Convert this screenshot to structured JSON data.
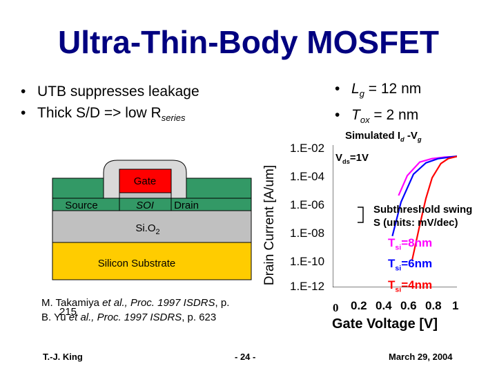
{
  "slide": {
    "title": "Ultra-Thin-Body MOSFET",
    "bullets_left": [
      {
        "text": "UTB suppresses leakage"
      },
      {
        "text": "Thick S/D => low R",
        "sub": "series"
      }
    ],
    "bullets_right": [
      {
        "pre": "L",
        "sub": "g",
        "post": " = 12 nm"
      },
      {
        "pre": "T",
        "sub": "ox",
        "post": " = 2 nm"
      }
    ],
    "references": {
      "line1_author": "M. Takamiya ",
      "line1_etal": "et al., Proc. 1997 ISDRS",
      "line1_page": ", p.",
      "line1_page_num": "215",
      "line2_author": "B. Yu ",
      "line2_etal": "et al., Proc. 1997 ISDRS",
      "line2_page": ", p. 623"
    },
    "footer": {
      "author": "T.-J. King",
      "page": "- 24 -",
      "date": "March 29, 2004"
    }
  },
  "diagram": {
    "gate": "Gate",
    "source": "Source",
    "soi": "SOI",
    "drain": "Drain",
    "oxide": "Si.O",
    "oxide_sub": "2",
    "substrate": "Silicon Substrate",
    "colors": {
      "gate": "#ff0000",
      "green": "#339966",
      "gray": "#c0c0c0",
      "substrate": "#ffcc00",
      "spacer": "#d9d9d9"
    }
  },
  "chart_data": {
    "type": "line",
    "title_pre": "Simulated I",
    "title_sub1": "d",
    "title_mid": " -V",
    "title_sub2": "g",
    "xlabel": "Gate Voltage [V]",
    "ylabel": "Drain Current [A/um]",
    "x_ticks": [
      "0",
      "0.2",
      "0.4",
      "0.6",
      "0.8",
      "1"
    ],
    "y_ticks": [
      "1.E-02",
      "1.E-04",
      "1.E-06",
      "1.E-08",
      "1.E-10",
      "1.E-12"
    ],
    "xlim": [
      0,
      1
    ],
    "ylim": [
      -12,
      -2
    ],
    "log_y": true,
    "annotation_vds_pre": "V",
    "annotation_vds_sub": "ds",
    "annotation_vds_post": "=1V",
    "annotation_swing_1": "Subthreshold swing",
    "annotation_swing_2": "S (units: mV/dec)",
    "series": [
      {
        "name": "Tsi=8nm",
        "color": "#ff00ff",
        "x": [
          0.53,
          0.6,
          0.7,
          0.8,
          0.9,
          1.0
        ],
        "y": [
          -5.55,
          -4.15,
          -3.2,
          -2.95,
          -2.85,
          -2.8
        ]
      },
      {
        "name": "Tsi=6nm",
        "color": "#0000ff",
        "x": [
          0.48,
          0.55,
          0.65,
          0.75,
          0.85,
          1.0
        ],
        "y": [
          -8.4,
          -6.0,
          -4.05,
          -3.25,
          -2.95,
          -2.78
        ]
      },
      {
        "name": "Tsi=4nm",
        "color": "#ff0000",
        "x": [
          0.64,
          0.7,
          0.75,
          0.8,
          0.87,
          0.93,
          1.0
        ],
        "y": [
          -10.05,
          -7.65,
          -5.75,
          -4.3,
          -3.3,
          -2.95,
          -2.8
        ]
      }
    ],
    "series_labels": [
      {
        "pre": "T",
        "sub": "si",
        "post": "=8nm",
        "color": "#ff00ff"
      },
      {
        "pre": "T",
        "sub": "si",
        "post": "=6nm",
        "color": "#0000ff"
      },
      {
        "pre": "T",
        "sub": "si",
        "post": "=4nm",
        "color": "#ff0000"
      }
    ]
  }
}
